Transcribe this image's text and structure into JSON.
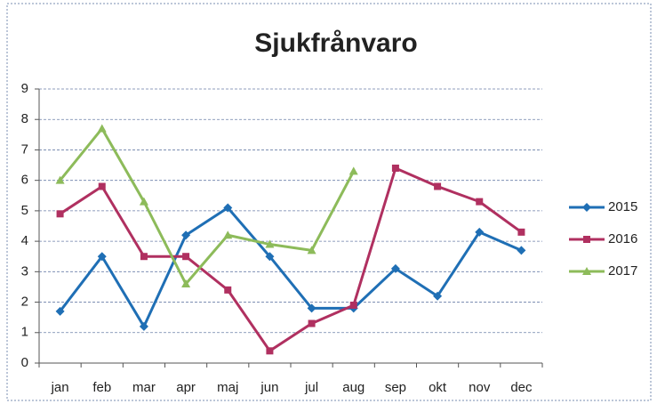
{
  "chart_data": {
    "type": "line",
    "title": "Sjukfrånvaro",
    "categories": [
      "jan",
      "feb",
      "mar",
      "apr",
      "maj",
      "jun",
      "jul",
      "aug",
      "sep",
      "okt",
      "nov",
      "dec"
    ],
    "series": [
      {
        "name": "2015",
        "color": "#1f6fb5",
        "marker": "diamond",
        "values": [
          1.7,
          3.5,
          1.2,
          4.2,
          5.1,
          3.5,
          1.8,
          1.8,
          3.1,
          2.2,
          4.3,
          3.7
        ]
      },
      {
        "name": "2016",
        "color": "#b03060",
        "marker": "square",
        "values": [
          4.9,
          5.8,
          3.5,
          3.5,
          2.4,
          0.4,
          1.3,
          1.9,
          6.4,
          5.8,
          5.3,
          4.3
        ]
      },
      {
        "name": "2017",
        "color": "#8dbb5a",
        "marker": "triangle",
        "values": [
          6.0,
          7.7,
          5.3,
          2.6,
          4.2,
          3.9,
          3.7,
          6.3,
          null,
          null,
          null,
          null
        ]
      }
    ],
    "ylim": [
      0,
      9
    ],
    "yticks": [
      0,
      1,
      2,
      3,
      4,
      5,
      6,
      7,
      8,
      9
    ],
    "grid": true,
    "legend": "right"
  }
}
